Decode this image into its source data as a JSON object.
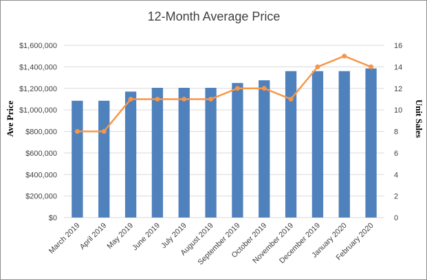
{
  "chart_data": {
    "type": "bar",
    "title": "12-Month Average Price",
    "categories": [
      "March 2019",
      "April 2019",
      "May 2019",
      "June 2019",
      "July 2019",
      "August 2019",
      "September 2019",
      "October 2019",
      "November 2019",
      "December 2019",
      "January 2020",
      "February 2020"
    ],
    "series": [
      {
        "name": "",
        "type": "bar",
        "axis": "left",
        "color": "#4f81bd",
        "values": [
          1085000,
          1085000,
          1170000,
          1205000,
          1205000,
          1205000,
          1250000,
          1275000,
          1360000,
          1360000,
          1360000,
          1385000
        ]
      },
      {
        "name": "",
        "type": "line",
        "axis": "right",
        "color": "#f79646",
        "values": [
          8,
          8,
          11,
          11,
          11,
          11,
          12,
          12,
          11,
          14,
          15,
          14
        ]
      }
    ],
    "ylabel": "Ave Price",
    "ylabel_right": "Unit Sales",
    "xlabel": "",
    "ylim": [
      0,
      1600000
    ],
    "ylim_right": [
      0,
      16
    ],
    "yticks": [
      "$0",
      "$200,000",
      "$400,000",
      "$600,000",
      "$800,000",
      "$1,000,000",
      "$1,200,000",
      "$1,400,000",
      "$1,600,000"
    ],
    "yticks_right": [
      "0",
      "2",
      "4",
      "6",
      "8",
      "10",
      "12",
      "14",
      "16"
    ],
    "grid": true,
    "legend": "none",
    "gridline_color": "#d9d9d9"
  }
}
